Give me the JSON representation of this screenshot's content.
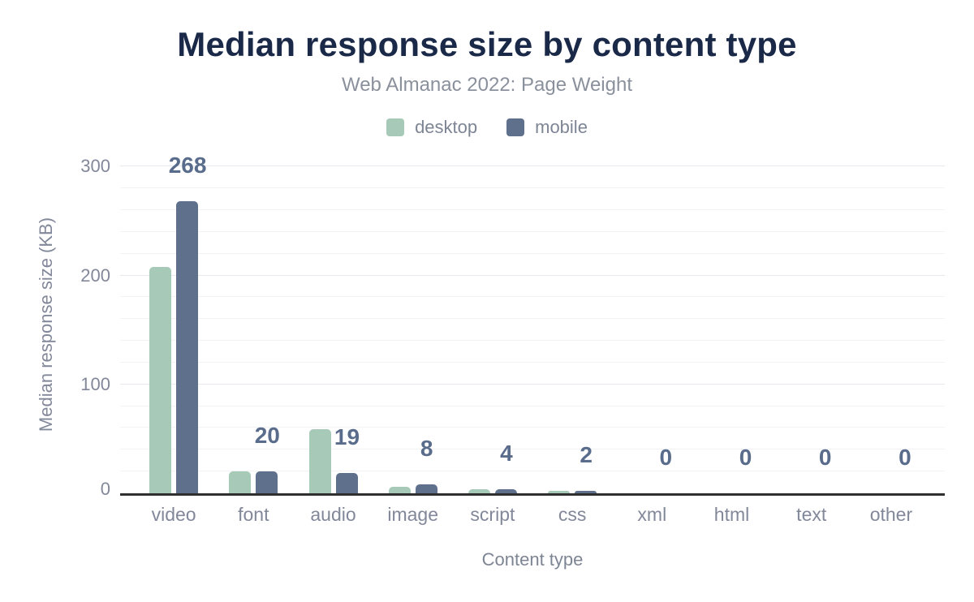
{
  "header": {
    "title": "Median response size by content type",
    "subtitle": "Web Almanac 2022: Page Weight"
  },
  "axes": {
    "y_title": "Median response size (KB)",
    "x_title": "Content type"
  },
  "colors": {
    "title": "#1b2949",
    "subtitle": "#8a909c",
    "axis_text": "#82889a",
    "axis_line": "#2f2f2f",
    "data_label": "#5a6c8b",
    "desktop": "#a7c9b8",
    "mobile": "#5f708c"
  },
  "chart_data": {
    "type": "bar",
    "title": "Median response size by content type",
    "subtitle": "Web Almanac 2022: Page Weight",
    "categories": [
      "video",
      "font",
      "audio",
      "image",
      "script",
      "css",
      "xml",
      "html",
      "text",
      "other"
    ],
    "series": [
      {
        "name": "desktop",
        "color": "#a7c9b8",
        "values": [
          208,
          20,
          59,
          6,
          4,
          2,
          0,
          0,
          0,
          0
        ]
      },
      {
        "name": "mobile",
        "color": "#5f708c",
        "values": [
          268,
          20,
          19,
          8,
          4,
          2,
          0,
          0,
          0,
          0
        ]
      }
    ],
    "data_labels": {
      "labeled_series": "mobile",
      "values": [
        "268",
        "20",
        "19",
        "8",
        "4",
        "2",
        "0",
        "0",
        "0",
        "0"
      ],
      "color": "#5a6c8b"
    },
    "xlabel": "Content type",
    "ylabel": "Median response size (KB)",
    "ylim": [
      0,
      300
    ],
    "y_tick_step": 100,
    "y_tick_labels": [
      "0",
      "100",
      "200",
      "300"
    ],
    "y_minor_grid_step": 20,
    "grid": true,
    "legend_position": "top"
  }
}
